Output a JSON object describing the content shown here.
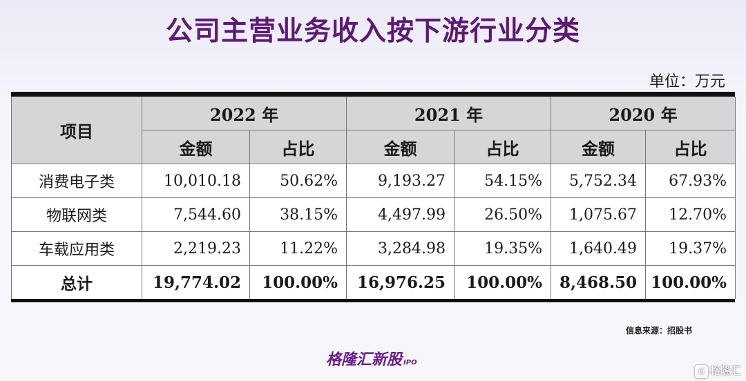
{
  "title": "公司主营业务收入按下游行业分类",
  "unit": "单位：万元",
  "table": {
    "item_header": "项目",
    "years": [
      "2022 年",
      "2021 年",
      "2020 年"
    ],
    "sub_headers": {
      "amount": "金额",
      "ratio": "占比"
    },
    "rows": [
      {
        "label": "消费电子类",
        "cells": [
          "10,010.18",
          "50.62%",
          "9,193.27",
          "54.15%",
          "5,752.34",
          "67.93%"
        ]
      },
      {
        "label": "物联网类",
        "cells": [
          "7,544.60",
          "38.15%",
          "4,497.99",
          "26.50%",
          "1,075.67",
          "12.70%"
        ]
      },
      {
        "label": "车载应用类",
        "cells": [
          "2,219.23",
          "11.22%",
          "3,284.98",
          "19.35%",
          "1,640.49",
          "19.37%"
        ]
      }
    ],
    "total": {
      "label": "总计",
      "cells": [
        "19,774.02",
        "100.00%",
        "16,976.25",
        "100.00%",
        "8,468.50",
        "100.00%"
      ]
    }
  },
  "watermark": "格隆汇新股",
  "watermark_suffix": "IPO",
  "source": "信息来源：招股书",
  "logo": {
    "text": "格隆汇新股",
    "suffix": "IPO"
  },
  "corner_brand": {
    "icon": "G",
    "text": "格隆汇"
  }
}
